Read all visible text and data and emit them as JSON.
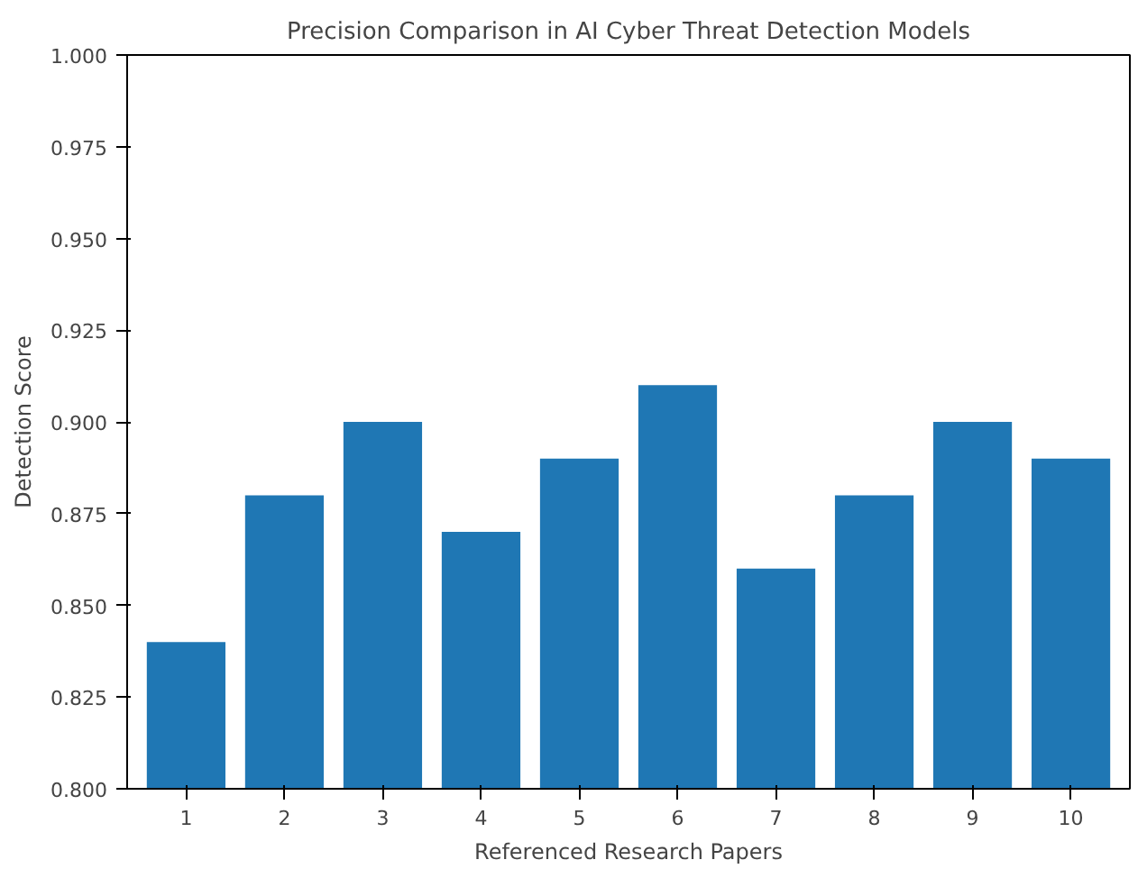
{
  "chart_data": {
    "type": "bar",
    "title": "Precision Comparison in AI Cyber Threat Detection Models",
    "xlabel": "Referenced Research Papers",
    "ylabel": "Detection Score",
    "categories": [
      "1",
      "2",
      "3",
      "4",
      "5",
      "6",
      "7",
      "8",
      "9",
      "10"
    ],
    "values": [
      0.84,
      0.88,
      0.9,
      0.87,
      0.89,
      0.91,
      0.86,
      0.88,
      0.9,
      0.89
    ],
    "color": "#1f77b4",
    "ylim": [
      0.8,
      1.0
    ],
    "yticks": [
      {
        "value": 0.8,
        "label": "0.800"
      },
      {
        "value": 0.825,
        "label": "0.825"
      },
      {
        "value": 0.85,
        "label": "0.850"
      },
      {
        "value": 0.875,
        "label": "0.875"
      },
      {
        "value": 0.9,
        "label": "0.900"
      },
      {
        "value": 0.925,
        "label": "0.925"
      },
      {
        "value": 0.95,
        "label": "0.950"
      },
      {
        "value": 0.975,
        "label": "0.975"
      },
      {
        "value": 1.0,
        "label": "1.000"
      }
    ],
    "grid": false
  }
}
